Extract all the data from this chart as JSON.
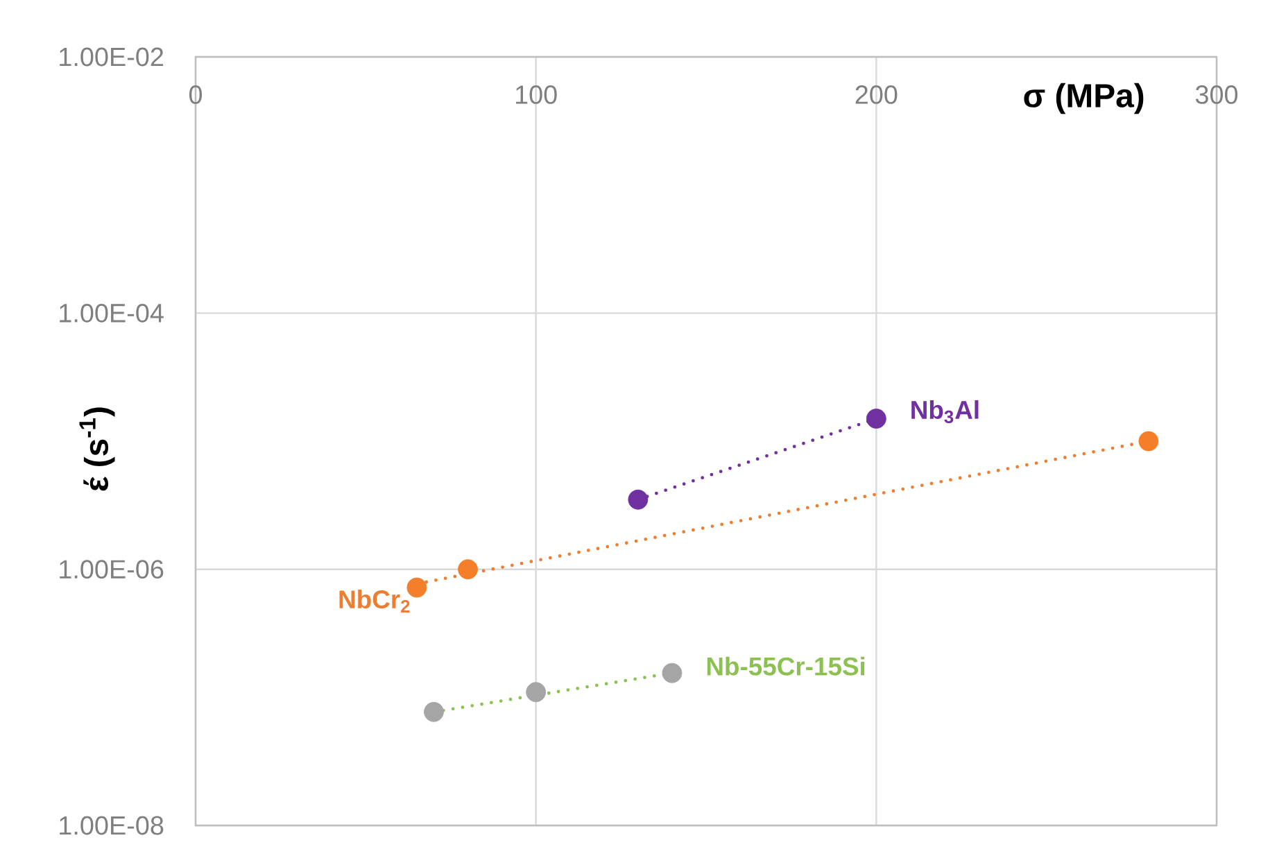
{
  "chart_data": {
    "type": "scatter",
    "xlabel": "σ (MPa)",
    "ylabel": "έ (s$^{-1}$)",
    "xlim": [
      0,
      300
    ],
    "xticks": [
      0,
      100,
      200,
      300
    ],
    "ylim": [
      1e-08,
      0.01
    ],
    "yticks": [
      {
        "value": 1e-08,
        "label": "1.00E-08"
      },
      {
        "value": 1e-06,
        "label": "1.00E-06"
      },
      {
        "value": 0.0001,
        "label": "1.00E-04"
      },
      {
        "value": 0.01,
        "label": "1.00E-02"
      }
    ],
    "log": "y",
    "grid": true,
    "series": [
      {
        "marker": "circle",
        "color": "#F47E2A",
        "x": [
          65,
          80,
          280
        ],
        "values": [
          7.2e-07,
          1e-06,
          1e-05
        ]
      },
      {
        "type": "line",
        "name": "NbCr$_{2}$",
        "line_style": "dotted",
        "color": "#ED7D31",
        "x": [
          65,
          280
        ],
        "values": [
          7.7e-07,
          1e-05
        ]
      },
      {
        "marker": "circle",
        "color": "#7030A0",
        "x": [
          130,
          200
        ],
        "values": [
          3.5e-06,
          1.5e-05
        ]
      },
      {
        "type": "line",
        "name": "Nb$_{3}$Al",
        "line_style": "dotted",
        "color": "#7030A0",
        "x": [
          130,
          200
        ],
        "values": [
          3.5e-06,
          1.5e-05
        ]
      },
      {
        "marker": "circle",
        "color": "#A5A5A5",
        "x": [
          70,
          100,
          140
        ],
        "values": [
          7.7e-08,
          1.1e-07,
          1.55e-07
        ]
      },
      {
        "type": "line",
        "name": "Nb-55Cr-15Si",
        "line_style": "dotted",
        "color": "#8CC152",
        "x": [
          70,
          140
        ],
        "values": [
          7.7e-08,
          1.55e-07
        ]
      }
    ]
  }
}
